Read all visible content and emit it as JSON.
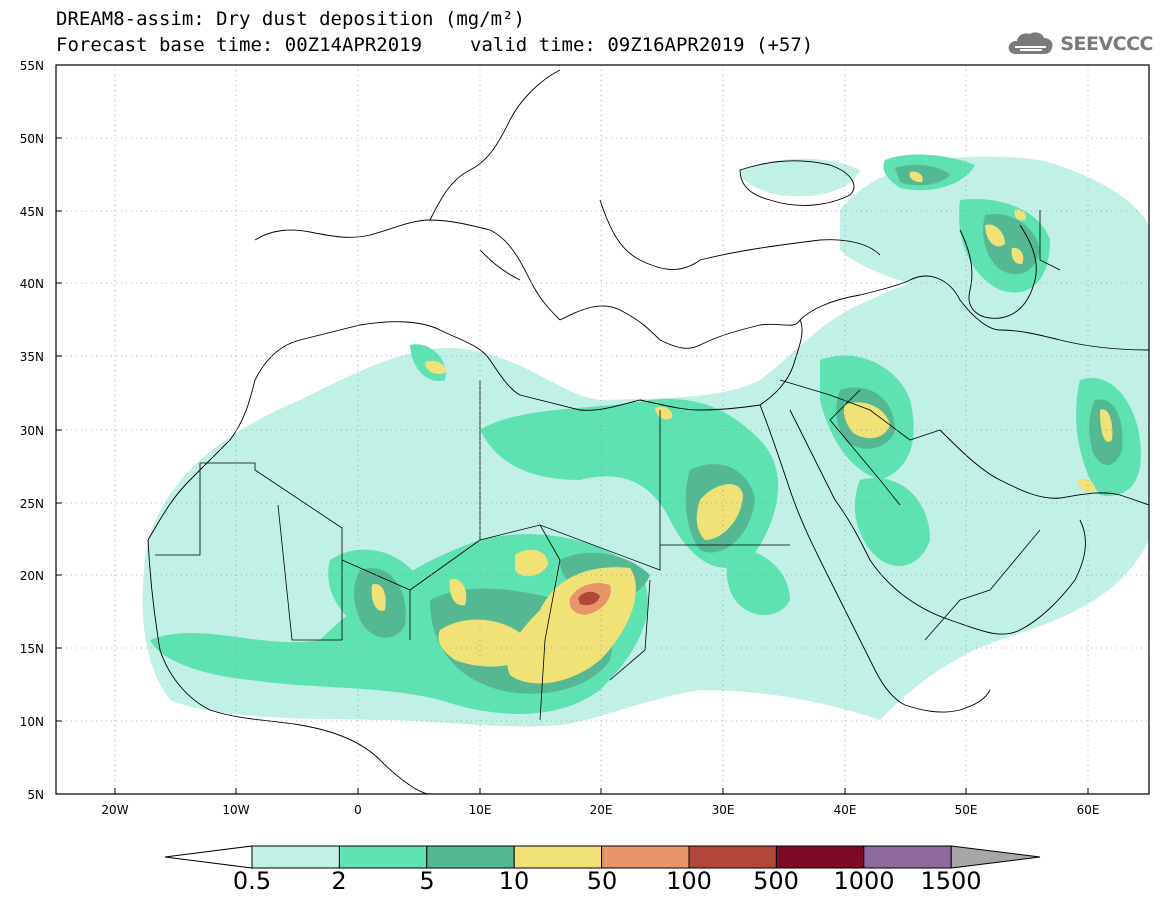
{
  "header": {
    "title": "DREAM8-assim: Dry dust deposition (mg/m²)",
    "base_time": "Forecast base time: 00Z14APR2019",
    "valid_time": "valid time: 09Z16APR2019 (+57)"
  },
  "logo": {
    "text": "SEEVCCC",
    "icon": "cloud-logo-icon"
  },
  "axes": {
    "lat_labels": [
      "55N",
      "50N",
      "45N",
      "40N",
      "35N",
      "30N",
      "25N",
      "20N",
      "15N",
      "10N",
      "5N"
    ],
    "lon_labels": [
      "20W",
      "10W",
      "0",
      "10E",
      "20E",
      "30E",
      "40E",
      "50E",
      "60E"
    ]
  },
  "colorbar": {
    "labels": [
      "0.5",
      "2",
      "5",
      "10",
      "50",
      "100",
      "500",
      "1000",
      "1500"
    ],
    "colors": [
      "#c0f0e6",
      "#5ee2b2",
      "#54b893",
      "#f1e277",
      "#e9956a",
      "#b0473a",
      "#7d0a26",
      "#8e6a9e",
      "#a7a7a7"
    ]
  }
}
